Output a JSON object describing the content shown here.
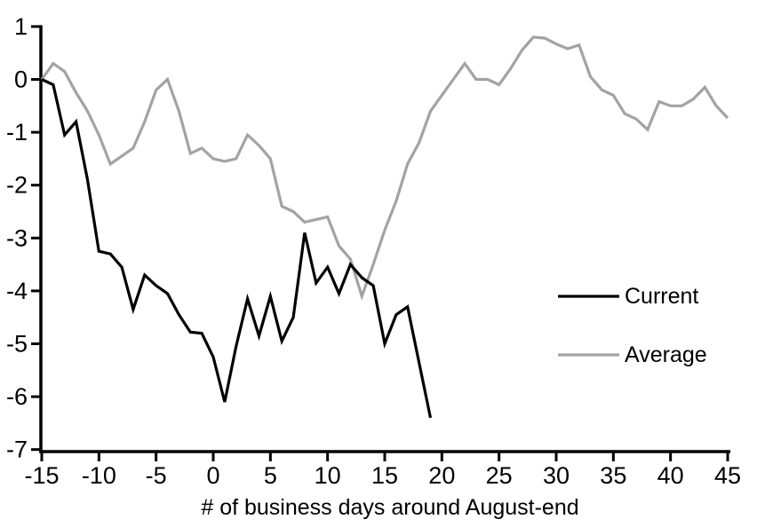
{
  "chart_data": {
    "type": "line",
    "title": "",
    "xlabel": "# of business days around August-end",
    "ylabel": "",
    "grid": false,
    "legend_position": "middle-right",
    "x_axis": {
      "min": -15,
      "max": 45,
      "ticks": [
        -15,
        -10,
        -5,
        0,
        5,
        10,
        15,
        20,
        25,
        30,
        35,
        40,
        45
      ]
    },
    "y_axis": {
      "min": -7,
      "max": 1,
      "ticks": [
        1,
        0,
        -1,
        -2,
        -3,
        -4,
        -5,
        -6,
        -7
      ]
    },
    "series": [
      {
        "name": "Current",
        "color": "#000000",
        "x_start": -15,
        "x_end": 19,
        "values": [
          0,
          -0.1,
          -1.05,
          -0.8,
          -1.9,
          -3.25,
          -3.3,
          -3.55,
          -4.35,
          -3.7,
          -3.9,
          -4.05,
          -4.45,
          -4.78,
          -4.8,
          -5.25,
          -6.1,
          -5.05,
          -4.15,
          -4.85,
          -4.1,
          -4.95,
          -4.5,
          -2.9,
          -3.85,
          -3.55,
          -4.05,
          -3.5,
          -3.75,
          -3.9,
          -5.0,
          -4.45,
          -4.3,
          -5.35,
          -6.4
        ]
      },
      {
        "name": "Average",
        "color": "#A3A3A3",
        "x_start": -15,
        "x_end": 45,
        "values": [
          0,
          0.3,
          0.15,
          -0.25,
          -0.6,
          -1.05,
          -1.6,
          -1.45,
          -1.3,
          -0.8,
          -0.2,
          0,
          -0.6,
          -1.4,
          -1.3,
          -1.5,
          -1.55,
          -1.5,
          -1.05,
          -1.25,
          -1.5,
          -2.4,
          -2.5,
          -2.7,
          -2.65,
          -2.6,
          -3.15,
          -3.4,
          -4.1,
          -3.5,
          -2.85,
          -2.3,
          -1.6,
          -1.2,
          -0.6,
          -0.3,
          0,
          0.3,
          0,
          0,
          -0.1,
          0.2,
          0.55,
          0.8,
          0.78,
          0.67,
          0.58,
          0.65,
          0.05,
          -0.2,
          -0.3,
          -0.65,
          -0.75,
          -0.95,
          -0.42,
          -0.5,
          -0.5,
          -0.37,
          -0.15,
          -0.5,
          -0.73
        ]
      }
    ]
  },
  "colors": {
    "background": "#FFFFFF",
    "axis": "#000000",
    "current": "#000000",
    "average": "#A3A3A3"
  }
}
